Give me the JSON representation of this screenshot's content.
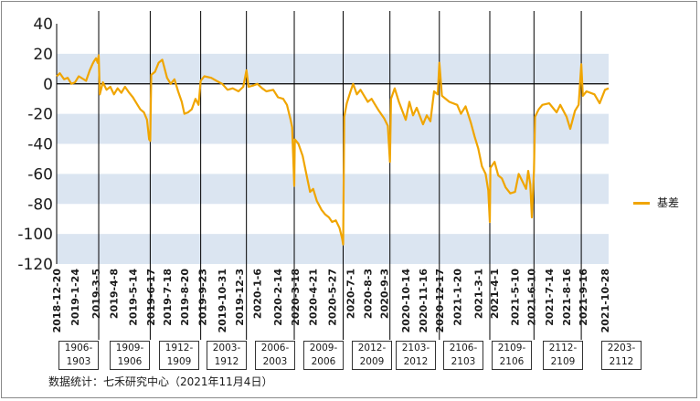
{
  "chart_data": {
    "type": "line",
    "title": "",
    "xlabel": "",
    "ylabel": "",
    "ylim": [
      -120,
      40
    ],
    "y_ticks": [
      "40",
      "20",
      "0",
      "-20",
      "-40",
      "-60",
      "-80",
      "-100",
      "-120"
    ],
    "x_ticks": [
      "2018-12-20",
      "2019-1-24",
      "2019-3-5",
      "2019-4-8",
      "2019-5-14",
      "2019-6-17",
      "2019-7-18",
      "2019-8-20",
      "2019-9-23",
      "2019-10-31",
      "2019-12-3",
      "2020-1-6",
      "2020-2-14",
      "2020-3-18",
      "2020-4-21",
      "2020-5-27",
      "2020-7-1",
      "2020-8-3",
      "2020-9-3",
      "2020-10-14",
      "2020-11-16",
      "2020-12-17",
      "2021-1-20",
      "2021-3-1",
      "2021-4-1",
      "2021-5-10",
      "2021-6-10",
      "2021-7-14",
      "2021-8-16",
      "2021-9-16",
      "2021-10-28"
    ],
    "x_range": [
      "2018-12-20",
      "2021-11-04"
    ],
    "shaded_bands": [
      [
        20,
        0
      ],
      [
        -20,
        -40
      ],
      [
        -60,
        -80
      ],
      [
        -100,
        -120
      ]
    ],
    "band_color": "#dbe5f1",
    "series_color": "#f0a500",
    "legend_position": "right",
    "series": [
      {
        "name": "基差",
        "points": [
          [
            "2018-12-20",
            5
          ],
          [
            "2018-12-26",
            7
          ],
          [
            "2019-1-3",
            3
          ],
          [
            "2019-1-10",
            4
          ],
          [
            "2019-1-17",
            0
          ],
          [
            "2019-1-24",
            1
          ],
          [
            "2019-1-31",
            5
          ],
          [
            "2019-2-14",
            2
          ],
          [
            "2019-2-21",
            9
          ],
          [
            "2019-2-26",
            13
          ],
          [
            "2019-3-1",
            15
          ],
          [
            "2019-3-5",
            17
          ],
          [
            "2019-3-8",
            14
          ],
          [
            "2019-3-10",
            19
          ],
          [
            "2019-3-12",
            -7
          ],
          [
            "2019-3-18",
            1
          ],
          [
            "2019-3-25",
            -4
          ],
          [
            "2019-4-1",
            -2
          ],
          [
            "2019-4-8",
            -7
          ],
          [
            "2019-4-15",
            -3
          ],
          [
            "2019-4-22",
            -6
          ],
          [
            "2019-4-29",
            -2
          ],
          [
            "2019-5-7",
            -6
          ],
          [
            "2019-5-14",
            -9
          ],
          [
            "2019-5-21",
            -13
          ],
          [
            "2019-5-28",
            -17
          ],
          [
            "2019-6-4",
            -19
          ],
          [
            "2019-6-10",
            -24
          ],
          [
            "2019-6-14",
            -37
          ],
          [
            "2019-6-16",
            -38
          ],
          [
            "2019-6-18",
            6
          ],
          [
            "2019-6-25",
            8
          ],
          [
            "2019-7-2",
            14
          ],
          [
            "2019-7-9",
            16
          ],
          [
            "2019-7-18",
            4
          ],
          [
            "2019-7-25",
            0
          ],
          [
            "2019-8-1",
            3
          ],
          [
            "2019-8-8",
            -5
          ],
          [
            "2019-8-15",
            -12
          ],
          [
            "2019-8-20",
            -20
          ],
          [
            "2019-8-27",
            -19
          ],
          [
            "2019-9-3",
            -17
          ],
          [
            "2019-9-10",
            -10
          ],
          [
            "2019-9-16",
            -14
          ],
          [
            "2019-9-20",
            2
          ],
          [
            "2019-9-27",
            5
          ],
          [
            "2019-10-10",
            4
          ],
          [
            "2019-10-20",
            2
          ],
          [
            "2019-10-31",
            0
          ],
          [
            "2019-11-10",
            -4
          ],
          [
            "2019-11-20",
            -3
          ],
          [
            "2019-12-1",
            -5
          ],
          [
            "2019-12-10",
            -2
          ],
          [
            "2019-12-16",
            9
          ],
          [
            "2019-12-20",
            -2
          ],
          [
            "2019-12-30",
            -1
          ],
          [
            "2020-1-6",
            0
          ],
          [
            "2020-1-15",
            -3
          ],
          [
            "2020-1-23",
            -5
          ],
          [
            "2020-2-5",
            -4
          ],
          [
            "2020-2-14",
            -9
          ],
          [
            "2020-2-24",
            -10
          ],
          [
            "2020-3-2",
            -14
          ],
          [
            "2020-3-9",
            -24
          ],
          [
            "2020-3-12",
            -29
          ],
          [
            "2020-3-16",
            -68
          ],
          [
            "2020-3-17",
            -37
          ],
          [
            "2020-3-24",
            -40
          ],
          [
            "2020-4-1",
            -48
          ],
          [
            "2020-4-8",
            -60
          ],
          [
            "2020-4-15",
            -72
          ],
          [
            "2020-4-21",
            -70
          ],
          [
            "2020-4-28",
            -78
          ],
          [
            "2020-5-7",
            -84
          ],
          [
            "2020-5-14",
            -87
          ],
          [
            "2020-5-21",
            -89
          ],
          [
            "2020-5-27",
            -92
          ],
          [
            "2020-6-3",
            -91
          ],
          [
            "2020-6-10",
            -96
          ],
          [
            "2020-6-15",
            -103
          ],
          [
            "2020-6-17",
            -107
          ],
          [
            "2020-6-19",
            -22
          ],
          [
            "2020-6-24",
            -13
          ],
          [
            "2020-7-1",
            -5
          ],
          [
            "2020-7-6",
            0
          ],
          [
            "2020-7-13",
            -7
          ],
          [
            "2020-7-20",
            -4
          ],
          [
            "2020-7-27",
            -8
          ],
          [
            "2020-8-3",
            -12
          ],
          [
            "2020-8-10",
            -10
          ],
          [
            "2020-8-17",
            -14
          ],
          [
            "2020-8-24",
            -18
          ],
          [
            "2020-9-3",
            -23
          ],
          [
            "2020-9-10",
            -28
          ],
          [
            "2020-9-14",
            -52
          ],
          [
            "2020-9-16",
            -10
          ],
          [
            "2020-9-23",
            -3
          ],
          [
            "2020-10-1",
            -12
          ],
          [
            "2020-10-14",
            -24
          ],
          [
            "2020-10-21",
            -12
          ],
          [
            "2020-10-28",
            -21
          ],
          [
            "2020-11-4",
            -16
          ],
          [
            "2020-11-16",
            -27
          ],
          [
            "2020-11-23",
            -21
          ],
          [
            "2020-11-30",
            -25
          ],
          [
            "2020-12-7",
            -5
          ],
          [
            "2020-12-14",
            -7
          ],
          [
            "2020-12-17",
            14
          ],
          [
            "2020-12-22",
            -8
          ],
          [
            "2021-1-5",
            -12
          ],
          [
            "2021-1-20",
            -14
          ],
          [
            "2021-1-27",
            -20
          ],
          [
            "2021-2-5",
            -15
          ],
          [
            "2021-2-15",
            -26
          ],
          [
            "2021-2-22",
            -35
          ],
          [
            "2021-3-1",
            -43
          ],
          [
            "2021-3-8",
            -55
          ],
          [
            "2021-3-15",
            -60
          ],
          [
            "2021-3-20",
            -71
          ],
          [
            "2021-3-23",
            -92
          ],
          [
            "2021-3-24",
            -56
          ],
          [
            "2021-4-1",
            -52
          ],
          [
            "2021-4-8",
            -61
          ],
          [
            "2021-4-15",
            -63
          ],
          [
            "2021-4-22",
            -69
          ],
          [
            "2021-5-1",
            -73
          ],
          [
            "2021-5-10",
            -72
          ],
          [
            "2021-5-17",
            -60
          ],
          [
            "2021-5-24",
            -65
          ],
          [
            "2021-5-31",
            -70
          ],
          [
            "2021-6-4",
            -58
          ],
          [
            "2021-6-8",
            -67
          ],
          [
            "2021-6-11",
            -89
          ],
          [
            "2021-6-15",
            -58
          ],
          [
            "2021-6-17",
            -22
          ],
          [
            "2021-6-24",
            -17
          ],
          [
            "2021-7-1",
            -14
          ],
          [
            "2021-7-14",
            -13
          ],
          [
            "2021-7-21",
            -16
          ],
          [
            "2021-7-28",
            -19
          ],
          [
            "2021-8-4",
            -14
          ],
          [
            "2021-8-16",
            -22
          ],
          [
            "2021-8-23",
            -30
          ],
          [
            "2021-9-1",
            -18
          ],
          [
            "2021-9-8",
            -14
          ],
          [
            "2021-9-13",
            13
          ],
          [
            "2021-9-16",
            -8
          ],
          [
            "2021-9-23",
            -5
          ],
          [
            "2021-10-8",
            -7
          ],
          [
            "2021-10-18",
            -13
          ],
          [
            "2021-10-28",
            -4
          ],
          [
            "2021-11-4",
            -3
          ]
        ]
      }
    ],
    "contract_rolls": [
      {
        "date": "2019-3-10",
        "label": "1906-\n1903"
      },
      {
        "date": "2019-6-16",
        "label": "1909-\n1906"
      },
      {
        "date": "2019-9-20",
        "label": "1912-\n1909"
      },
      {
        "date": "2019-12-16",
        "label": "2003-\n1912"
      },
      {
        "date": "2020-3-16",
        "label": "2006-\n2003"
      },
      {
        "date": "2020-6-17",
        "label": "2009-\n2006"
      },
      {
        "date": "2020-9-14",
        "label": "2012-\n2009"
      },
      {
        "date": "2020-12-17",
        "label": "2103-\n2012"
      },
      {
        "date": "2021-3-23",
        "label": "2106-\n2103"
      },
      {
        "date": "2021-6-15",
        "label": "2109-\n2106"
      },
      {
        "date": "2021-9-13",
        "label": "2112-\n2109"
      },
      {
        "date": "",
        "label": "2203-\n2112"
      }
    ]
  },
  "source_note": "数据统计：七禾研究中心（2021年11月4日）"
}
